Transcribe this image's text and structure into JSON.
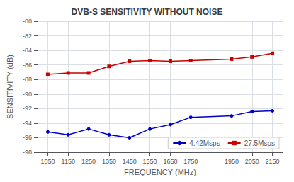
{
  "chart_data": {
    "type": "line",
    "title": "DVB-S SENSITIVITY WITHOUT NOISE",
    "xlabel": "FREQUENCY (MHz)",
    "ylabel": "SENSITIVITY (dB)",
    "x": [
      1050,
      1150,
      1250,
      1350,
      1450,
      1550,
      1650,
      1750,
      1950,
      2050,
      2150
    ],
    "series": [
      {
        "name": "4.42Msps",
        "color": "#0000CC",
        "marker": "circle",
        "values": [
          -95.2,
          -95.6,
          -94.8,
          -95.6,
          -96.0,
          -94.8,
          -94.2,
          -93.2,
          -93.0,
          -92.4,
          -92.3
        ]
      },
      {
        "name": "27.5Msps",
        "color": "#CC0000",
        "marker": "square",
        "values": [
          -87.3,
          -87.1,
          -87.1,
          -86.2,
          -85.5,
          -85.4,
          -85.5,
          -85.4,
          -85.2,
          -84.9,
          -84.4
        ]
      }
    ],
    "xlim": [
      1000,
      2200
    ],
    "ylim": [
      -98,
      -80
    ],
    "xticks": [
      1050,
      1150,
      1250,
      1350,
      1450,
      1550,
      1650,
      1750,
      1950,
      2050,
      2150
    ],
    "yticks": [
      -98,
      -96,
      -94,
      -92,
      -90,
      -88,
      -86,
      -84,
      -82,
      -80
    ],
    "grid": true,
    "legend": "lower right"
  }
}
